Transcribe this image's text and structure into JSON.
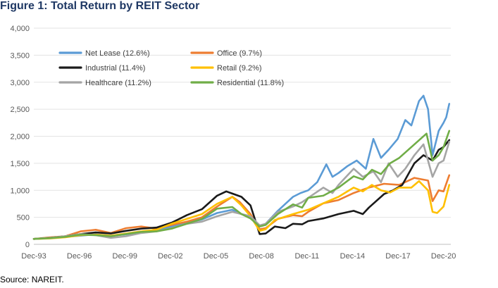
{
  "chart_data": {
    "type": "line",
    "title": "Figure 1: Total Return by REIT Sector",
    "source": "Source: NAREIT.",
    "xlabel": "",
    "ylabel": "",
    "x_range": [
      1993.92,
      2021.4
    ],
    "ylim": [
      0,
      4000
    ],
    "y_ticks": [
      "0",
      "500",
      "1,000",
      "1,500",
      "2,000",
      "2,500",
      "3,000",
      "3,500",
      "4,000"
    ],
    "y_tick_values": [
      0,
      500,
      1000,
      1500,
      2000,
      2500,
      3000,
      3500,
      4000
    ],
    "x_ticks": [
      "Dec-93",
      "Dec-96",
      "Dec-99",
      "Dec-02",
      "Dec-05",
      "Dec-08",
      "Dec-11",
      "Dec-14",
      "Dec-17",
      "Dec-20"
    ],
    "x_tick_values": [
      1993.92,
      1996.92,
      1999.92,
      2002.92,
      2005.92,
      2008.92,
      2011.92,
      2014.92,
      2017.92,
      2020.92
    ],
    "grid": "horizontal",
    "legend": "top-left",
    "series": [
      {
        "name": "Net Lease (12.6%)",
        "color": "#5b9bd5",
        "points": [
          [
            1993.92,
            100
          ],
          [
            1995,
            120
          ],
          [
            1997,
            160
          ],
          [
            1998,
            185
          ],
          [
            1999,
            160
          ],
          [
            2000,
            185
          ],
          [
            2001,
            225
          ],
          [
            2002,
            270
          ],
          [
            2003,
            330
          ],
          [
            2004,
            400
          ],
          [
            2005,
            460
          ],
          [
            2006,
            580
          ],
          [
            2007,
            640
          ],
          [
            2007.6,
            560
          ],
          [
            2008.2,
            520
          ],
          [
            2008.8,
            340
          ],
          [
            2009.2,
            380
          ],
          [
            2010,
            620
          ],
          [
            2010.5,
            750
          ],
          [
            2011,
            880
          ],
          [
            2011.5,
            950
          ],
          [
            2012,
            1000
          ],
          [
            2012.6,
            1150
          ],
          [
            2013.2,
            1480
          ],
          [
            2013.6,
            1250
          ],
          [
            2014,
            1320
          ],
          [
            2014.6,
            1450
          ],
          [
            2015.2,
            1550
          ],
          [
            2015.8,
            1400
          ],
          [
            2016.3,
            1950
          ],
          [
            2016.8,
            1600
          ],
          [
            2017.3,
            1750
          ],
          [
            2017.9,
            1950
          ],
          [
            2018.4,
            2300
          ],
          [
            2018.8,
            2200
          ],
          [
            2019.3,
            2650
          ],
          [
            2019.6,
            2750
          ],
          [
            2019.9,
            2500
          ],
          [
            2020.2,
            1650
          ],
          [
            2020.6,
            2100
          ],
          [
            2020.92,
            2250
          ],
          [
            2021.1,
            2350
          ],
          [
            2021.3,
            2600
          ]
        ]
      },
      {
        "name": "Office (9.7%)",
        "color": "#ed7d31",
        "points": [
          [
            1993.92,
            100
          ],
          [
            1995,
            130
          ],
          [
            1996,
            150
          ],
          [
            1997,
            240
          ],
          [
            1998,
            270
          ],
          [
            1999,
            210
          ],
          [
            2000,
            300
          ],
          [
            2001,
            330
          ],
          [
            2002,
            290
          ],
          [
            2003,
            360
          ],
          [
            2004,
            420
          ],
          [
            2005,
            500
          ],
          [
            2006,
            700
          ],
          [
            2007,
            880
          ],
          [
            2007.5,
            780
          ],
          [
            2008.2,
            560
          ],
          [
            2008.8,
            280
          ],
          [
            2009.2,
            300
          ],
          [
            2010,
            470
          ],
          [
            2011,
            540
          ],
          [
            2011.6,
            520
          ],
          [
            2012,
            600
          ],
          [
            2013,
            760
          ],
          [
            2014,
            820
          ],
          [
            2015,
            950
          ],
          [
            2016,
            1050
          ],
          [
            2017,
            1120
          ],
          [
            2018,
            1100
          ],
          [
            2019,
            1230
          ],
          [
            2019.9,
            1180
          ],
          [
            2020.2,
            800
          ],
          [
            2020.6,
            1000
          ],
          [
            2020.92,
            980
          ],
          [
            2021.3,
            1280
          ]
        ]
      },
      {
        "name": "Industrial (11.4%)",
        "color": "#1a1a1a",
        "points": [
          [
            1993.92,
            100
          ],
          [
            1995,
            120
          ],
          [
            1996,
            150
          ],
          [
            1997,
            190
          ],
          [
            1998,
            220
          ],
          [
            1999,
            200
          ],
          [
            2000,
            250
          ],
          [
            2001,
            290
          ],
          [
            2002,
            310
          ],
          [
            2003,
            400
          ],
          [
            2004,
            540
          ],
          [
            2005,
            650
          ],
          [
            2006,
            900
          ],
          [
            2006.6,
            980
          ],
          [
            2007,
            940
          ],
          [
            2007.6,
            880
          ],
          [
            2008.2,
            720
          ],
          [
            2008.8,
            190
          ],
          [
            2009.2,
            200
          ],
          [
            2009.8,
            330
          ],
          [
            2010.5,
            300
          ],
          [
            2011,
            380
          ],
          [
            2011.6,
            370
          ],
          [
            2012,
            430
          ],
          [
            2013,
            480
          ],
          [
            2014,
            560
          ],
          [
            2015,
            620
          ],
          [
            2015.6,
            560
          ],
          [
            2016,
            680
          ],
          [
            2017,
            930
          ],
          [
            2017.6,
            1000
          ],
          [
            2018.2,
            1100
          ],
          [
            2019,
            1500
          ],
          [
            2019.6,
            1650
          ],
          [
            2020.2,
            1550
          ],
          [
            2020.6,
            1750
          ],
          [
            2020.92,
            1800
          ],
          [
            2021.3,
            1930
          ]
        ]
      },
      {
        "name": "Retail (9.2%)",
        "color": "#ffc000",
        "points": [
          [
            1993.92,
            100
          ],
          [
            1995,
            110
          ],
          [
            1996,
            130
          ],
          [
            1997,
            170
          ],
          [
            1998,
            180
          ],
          [
            1999,
            160
          ],
          [
            2000,
            200
          ],
          [
            2001,
            240
          ],
          [
            2002,
            270
          ],
          [
            2003,
            380
          ],
          [
            2004,
            470
          ],
          [
            2005,
            560
          ],
          [
            2006,
            750
          ],
          [
            2007,
            880
          ],
          [
            2007.6,
            720
          ],
          [
            2008.2,
            520
          ],
          [
            2008.8,
            250
          ],
          [
            2009.2,
            280
          ],
          [
            2009.8,
            450
          ],
          [
            2011,
            560
          ],
          [
            2012,
            640
          ],
          [
            2013,
            760
          ],
          [
            2014,
            880
          ],
          [
            2015,
            1050
          ],
          [
            2015.6,
            980
          ],
          [
            2016.2,
            1100
          ],
          [
            2016.8,
            1000
          ],
          [
            2017.4,
            960
          ],
          [
            2018,
            1050
          ],
          [
            2018.8,
            1050
          ],
          [
            2019.3,
            1170
          ],
          [
            2019.9,
            1000
          ],
          [
            2020.2,
            600
          ],
          [
            2020.5,
            580
          ],
          [
            2020.92,
            700
          ],
          [
            2021.3,
            1100
          ]
        ]
      },
      {
        "name": "Healthcare (11.2%)",
        "color": "#a5a5a5",
        "points": [
          [
            1993.92,
            100
          ],
          [
            1995,
            120
          ],
          [
            1996,
            150
          ],
          [
            1997,
            190
          ],
          [
            1998,
            170
          ],
          [
            1999,
            120
          ],
          [
            2000,
            150
          ],
          [
            2001,
            210
          ],
          [
            2002,
            240
          ],
          [
            2003,
            300
          ],
          [
            2004,
            380
          ],
          [
            2005,
            420
          ],
          [
            2006,
            520
          ],
          [
            2007,
            600
          ],
          [
            2007.6,
            560
          ],
          [
            2008.2,
            520
          ],
          [
            2008.8,
            350
          ],
          [
            2009.2,
            380
          ],
          [
            2010,
            600
          ],
          [
            2011,
            700
          ],
          [
            2011.6,
            780
          ],
          [
            2012,
            860
          ],
          [
            2013,
            1050
          ],
          [
            2013.6,
            950
          ],
          [
            2014,
            1100
          ],
          [
            2015,
            1400
          ],
          [
            2015.6,
            1250
          ],
          [
            2016.3,
            1350
          ],
          [
            2016.8,
            1150
          ],
          [
            2017.3,
            1500
          ],
          [
            2017.9,
            1250
          ],
          [
            2018.4,
            1400
          ],
          [
            2019,
            1650
          ],
          [
            2019.6,
            1850
          ],
          [
            2020.2,
            1250
          ],
          [
            2020.6,
            1500
          ],
          [
            2020.92,
            1550
          ],
          [
            2021.3,
            1900
          ]
        ]
      },
      {
        "name": "Residential (11.8%)",
        "color": "#70ad47",
        "points": [
          [
            1993.92,
            100
          ],
          [
            1995,
            115
          ],
          [
            1996,
            140
          ],
          [
            1997,
            180
          ],
          [
            1998,
            170
          ],
          [
            1999,
            150
          ],
          [
            2000,
            190
          ],
          [
            2001,
            230
          ],
          [
            2002,
            240
          ],
          [
            2003,
            290
          ],
          [
            2004,
            380
          ],
          [
            2005,
            470
          ],
          [
            2006,
            660
          ],
          [
            2007,
            690
          ],
          [
            2007.6,
            560
          ],
          [
            2008.2,
            480
          ],
          [
            2008.8,
            330
          ],
          [
            2009.2,
            360
          ],
          [
            2010,
            560
          ],
          [
            2011,
            740
          ],
          [
            2011.6,
            680
          ],
          [
            2012,
            860
          ],
          [
            2013,
            900
          ],
          [
            2014,
            1050
          ],
          [
            2015,
            1260
          ],
          [
            2015.6,
            1200
          ],
          [
            2016.2,
            1380
          ],
          [
            2016.8,
            1300
          ],
          [
            2017.4,
            1500
          ],
          [
            2018,
            1600
          ],
          [
            2018.6,
            1750
          ],
          [
            2019.2,
            1900
          ],
          [
            2019.8,
            2050
          ],
          [
            2020.2,
            1550
          ],
          [
            2020.6,
            1650
          ],
          [
            2020.92,
            1800
          ],
          [
            2021.3,
            2100
          ]
        ]
      }
    ]
  }
}
